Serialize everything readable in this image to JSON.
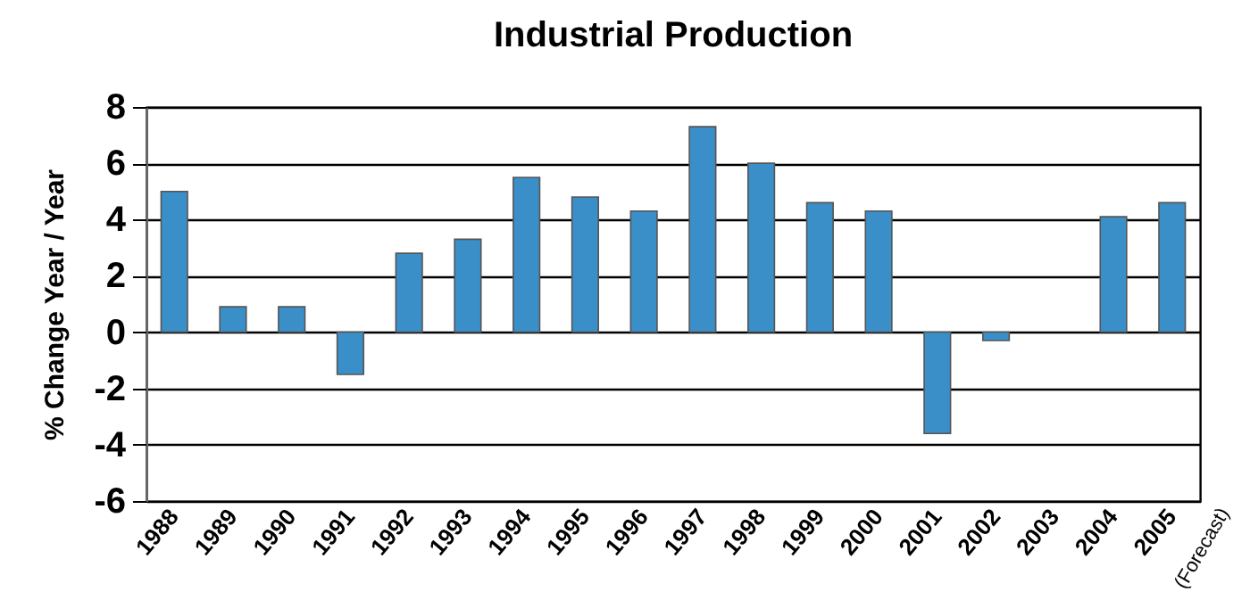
{
  "chart_data": {
    "type": "bar",
    "title": "Industrial Production",
    "ylabel": "% Change Year / Year",
    "categories": [
      "1988",
      "1989",
      "1990",
      "1991",
      "1992",
      "1993",
      "1994",
      "1995",
      "1996",
      "1997",
      "1998",
      "1999",
      "2000",
      "2001",
      "2002",
      "2003",
      "2004",
      "2005"
    ],
    "values": [
      5.0,
      0.9,
      0.9,
      -1.5,
      2.8,
      3.3,
      5.5,
      4.8,
      4.3,
      7.3,
      6.0,
      4.6,
      4.3,
      -3.6,
      -0.3,
      null,
      4.1,
      4.6
    ],
    "color": "#3a8fc8",
    "ylim": [
      -6,
      8
    ],
    "yticks": [
      -6,
      -4,
      -2,
      0,
      2,
      4,
      6,
      8
    ],
    "grid": "y",
    "annotations": [
      "(Forecast)"
    ]
  }
}
